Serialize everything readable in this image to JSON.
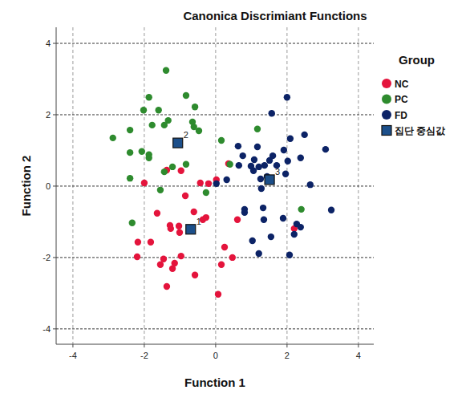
{
  "chart_data": {
    "type": "scatter",
    "title": "Canonica Discrimiant Functions",
    "x_label": "Function 1",
    "y_label": "Function 2",
    "xlim": [
      -4.47,
      4.43
    ],
    "ylim": [
      -4.43,
      4.45
    ],
    "xticks": [
      -4,
      -2,
      0,
      2,
      4
    ],
    "yticks": [
      -4,
      -2,
      0,
      2,
      4
    ],
    "grid": true,
    "legend": "right",
    "legend_title": "Group",
    "series": [
      {
        "name": "NC",
        "color": "#e4143c",
        "marker": "circle",
        "x": [
          -2.0,
          -0.97,
          -1.37,
          -0.85,
          -0.2,
          0.02,
          -0.43,
          -1.64,
          -0.61,
          -1.28,
          -1.26,
          -1.03,
          -1.01,
          -0.36,
          -0.27,
          0.61,
          -2.18,
          -1.82,
          -2.2,
          -1.46,
          -1.55,
          -1.15,
          -1.21,
          -0.97,
          0.25,
          0.16,
          0.47,
          -0.58,
          -1.37,
          0.07,
          2.2,
          0.36
        ],
        "values": [
          0.09,
          0.43,
          0.45,
          -0.27,
          0.07,
          0.18,
          0.09,
          -0.76,
          -0.72,
          -1.1,
          -1.19,
          -1.12,
          -1.3,
          -0.94,
          -0.88,
          -0.94,
          -1.57,
          -1.57,
          -1.98,
          -2.04,
          -2.2,
          -2.16,
          -2.31,
          -1.96,
          -1.71,
          -2.2,
          -2.0,
          -2.49,
          -2.81,
          -3.03,
          -1.19,
          0.63
        ]
      },
      {
        "name": "PC",
        "color": "#2e8b2e",
        "marker": "circle",
        "x": [
          -1.39,
          -1.87,
          -0.83,
          -2.02,
          -1.6,
          -0.58,
          -1.33,
          -1.78,
          -1.44,
          -0.65,
          -0.61,
          -0.47,
          -2.4,
          -2.88,
          0.16,
          -2.4,
          -2.07,
          -1.87,
          -1.87,
          -0.83,
          -1.21,
          -1.44,
          -2.4,
          -1.55,
          -0.27,
          0.4,
          1.17,
          2.4,
          -2.34
        ],
        "values": [
          3.24,
          2.49,
          2.54,
          2.13,
          2.13,
          2.22,
          1.84,
          1.71,
          1.71,
          1.8,
          1.66,
          1.55,
          1.57,
          1.35,
          1.28,
          0.94,
          0.97,
          0.88,
          0.79,
          0.61,
          0.54,
          0.4,
          0.22,
          -0.11,
          -0.18,
          0.61,
          1.6,
          -0.65,
          -1.03
        ]
      },
      {
        "name": "FD",
        "color": "#0c2366",
        "marker": "circle",
        "x": [
          2.0,
          1.57,
          0.63,
          1.17,
          2.49,
          2.09,
          0.76,
          1.91,
          3.08,
          1.08,
          1.6,
          2.38,
          1.51,
          2.02,
          0.65,
          0.99,
          1.21,
          1.37,
          1.06,
          1.71,
          1.96,
          0.31,
          1.26,
          1.44,
          1.28,
          2.65,
          0.02,
          0.81,
          0.81,
          1.33,
          3.24,
          1.89,
          2.27,
          2.38,
          1.35,
          2.2,
          1.55,
          1.03,
          1.21,
          2.07
        ],
        "values": [
          2.49,
          2.04,
          1.12,
          1.1,
          1.44,
          1.33,
          0.85,
          1.01,
          1.03,
          0.74,
          0.85,
          0.79,
          0.72,
          0.7,
          0.58,
          0.56,
          0.54,
          0.58,
          0.43,
          0.58,
          0.34,
          0.18,
          0.2,
          0.27,
          -0.07,
          0.04,
          0.07,
          -0.65,
          -0.74,
          -0.61,
          -0.67,
          -0.9,
          -1.06,
          -1.15,
          -0.94,
          -1.35,
          -1.42,
          -1.53,
          -1.89,
          -1.93
        ]
      },
      {
        "name": "집단 중심값",
        "color": "#1c4f8a",
        "marker": "square",
        "x": [
          -0.7,
          -1.06,
          1.51
        ],
        "values": [
          -1.21,
          1.21,
          0.18
        ],
        "labels": [
          "1",
          "2",
          "3"
        ]
      }
    ]
  }
}
